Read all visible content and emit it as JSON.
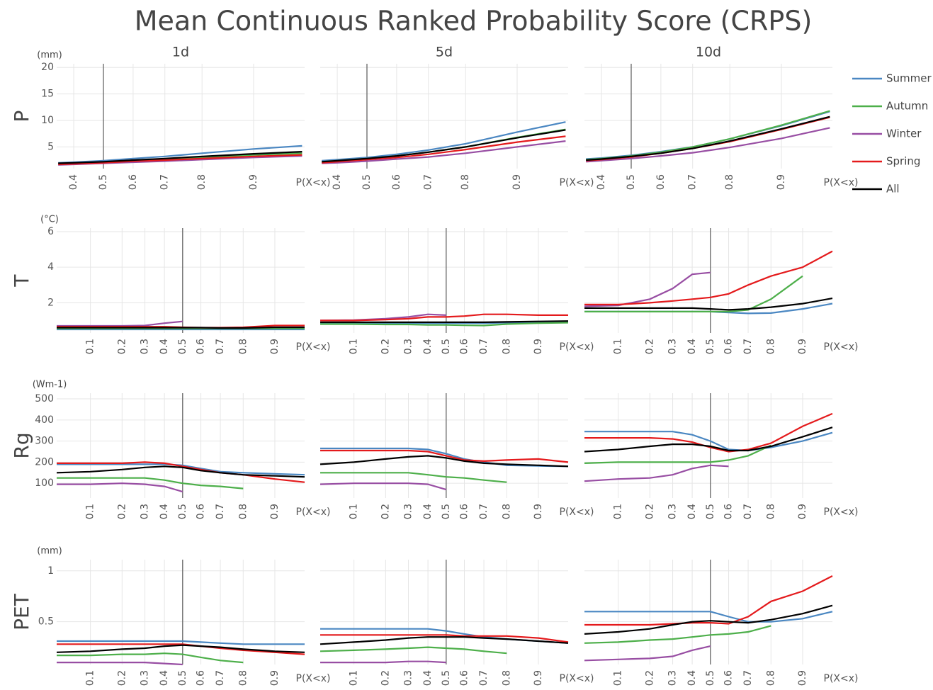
{
  "chart_data": {
    "type": "line",
    "title": "Mean Continuous Ranked Probability Score (CRPS)",
    "columns": [
      "1d",
      "5d",
      "10d"
    ],
    "x_label": "P(X<x)",
    "x_scale": "probit",
    "reference_x": 0.5,
    "grid": true,
    "legend_position": "right",
    "series": [
      {
        "name": "Summer",
        "color": "#4a87c2"
      },
      {
        "name": "Autumn",
        "color": "#4daf4a"
      },
      {
        "name": "Winter",
        "color": "#984ea3"
      },
      {
        "name": "Spring",
        "color": "#e41a1c"
      },
      {
        "name": "All",
        "color": "#000000"
      }
    ],
    "rows": [
      {
        "label": "P",
        "unit": "(mm)",
        "ylim": [
          0.9,
          20.7
        ],
        "yticks": [
          5,
          10,
          15,
          20
        ],
        "xlim": [
          0.345,
          0.957
        ],
        "xticks": [
          0.4,
          0.5,
          0.6,
          0.7,
          0.8,
          0.9
        ],
        "x": [
          0.35,
          0.4,
          0.5,
          0.6,
          0.7,
          0.8,
          0.9,
          0.955
        ],
        "panels": [
          {
            "values": [
              [
                2.0,
                2.1,
                2.4,
                2.8,
                3.2,
                3.8,
                4.6,
                5.2
              ],
              [
                1.8,
                1.9,
                2.1,
                2.4,
                2.7,
                3.0,
                3.5,
                3.8
              ],
              [
                1.6,
                1.7,
                1.9,
                2.1,
                2.3,
                2.6,
                3.0,
                3.3
              ],
              [
                1.7,
                1.8,
                2.0,
                2.3,
                2.5,
                2.8,
                3.2,
                3.5
              ],
              [
                1.9,
                2.0,
                2.2,
                2.5,
                2.8,
                3.2,
                3.7,
                4.1
              ]
            ]
          },
          {
            "values": [
              [
                2.4,
                2.6,
                3.0,
                3.6,
                4.4,
                5.6,
                7.8,
                9.7
              ],
              [
                2.2,
                2.4,
                2.8,
                3.3,
                4.0,
                5.0,
                6.8,
                8.3
              ],
              [
                1.9,
                2.0,
                2.3,
                2.7,
                3.1,
                3.8,
                5.0,
                6.1
              ],
              [
                2.0,
                2.2,
                2.6,
                3.0,
                3.6,
                4.5,
                5.9,
                7.0
              ],
              [
                2.2,
                2.4,
                2.8,
                3.3,
                4.0,
                5.0,
                6.7,
                8.2
              ]
            ]
          },
          {
            "values": [
              [
                2.7,
                2.9,
                3.4,
                4.1,
                5.0,
                6.5,
                9.0,
                11.7
              ],
              [
                2.6,
                2.8,
                3.3,
                4.0,
                5.0,
                6.5,
                9.1,
                11.8
              ],
              [
                2.2,
                2.4,
                2.8,
                3.3,
                3.9,
                4.9,
                6.6,
                8.6
              ],
              [
                2.4,
                2.6,
                3.1,
                3.8,
                4.7,
                6.0,
                8.3,
                10.6
              ],
              [
                2.5,
                2.7,
                3.2,
                3.8,
                4.7,
                6.1,
                8.4,
                10.7
              ]
            ]
          }
        ]
      },
      {
        "label": "T",
        "unit": "(°C)",
        "ylim": [
          0.3,
          6.2
        ],
        "yticks": [
          2,
          4,
          6
        ],
        "xlim": [
          0.04,
          0.955
        ],
        "xticks": [
          0.1,
          0.2,
          0.3,
          0.4,
          0.5,
          0.6,
          0.7,
          0.8,
          0.9
        ],
        "x": [
          0.04,
          0.1,
          0.2,
          0.3,
          0.4,
          0.5,
          0.6,
          0.7,
          0.8,
          0.9,
          0.955
        ],
        "panels": [
          {
            "values": [
              [
                0.5,
                0.5,
                0.5,
                0.5,
                0.5,
                0.5,
                0.5,
                0.5,
                0.5,
                0.5,
                0.5
              ],
              [
                0.55,
                0.55,
                0.55,
                0.55,
                0.55,
                0.55,
                0.55,
                0.55,
                0.55,
                0.55,
                0.55
              ],
              [
                0.7,
                0.7,
                0.7,
                0.72,
                0.85,
                0.95,
                null,
                null,
                null,
                null,
                null
              ],
              [
                0.65,
                0.65,
                0.65,
                0.65,
                0.65,
                0.62,
                0.6,
                0.6,
                0.62,
                0.72,
                0.72
              ],
              [
                0.6,
                0.6,
                0.6,
                0.6,
                0.6,
                0.6,
                0.6,
                0.58,
                0.58,
                0.62,
                0.62
              ]
            ]
          },
          {
            "values": [
              [
                0.85,
                0.85,
                0.85,
                0.85,
                0.85,
                0.85,
                0.85,
                0.85,
                0.88,
                0.9,
                0.92
              ],
              [
                0.8,
                0.8,
                0.78,
                0.78,
                0.75,
                0.75,
                0.73,
                0.72,
                0.8,
                0.85,
                0.88
              ],
              [
                1.0,
                1.02,
                1.1,
                1.2,
                1.35,
                1.3,
                null,
                null,
                null,
                null,
                null
              ],
              [
                1.0,
                1.0,
                1.05,
                1.1,
                1.2,
                1.2,
                1.25,
                1.35,
                1.35,
                1.3,
                1.3
              ],
              [
                0.9,
                0.9,
                0.9,
                0.9,
                0.9,
                0.9,
                0.9,
                0.9,
                0.92,
                0.95,
                0.97
              ]
            ]
          },
          {
            "values": [
              [
                1.5,
                1.5,
                1.5,
                1.5,
                1.5,
                1.5,
                1.45,
                1.4,
                1.42,
                1.65,
                1.95
              ],
              [
                1.5,
                1.5,
                1.5,
                1.5,
                1.5,
                1.5,
                1.5,
                1.6,
                2.2,
                3.5,
                null
              ],
              [
                1.8,
                1.85,
                2.2,
                2.8,
                3.6,
                3.7,
                null,
                null,
                null,
                null,
                null
              ],
              [
                1.9,
                1.9,
                2.0,
                2.1,
                2.2,
                2.3,
                2.5,
                3.0,
                3.5,
                4.0,
                4.9
              ],
              [
                1.7,
                1.7,
                1.7,
                1.7,
                1.7,
                1.65,
                1.6,
                1.65,
                1.75,
                1.95,
                2.25
              ]
            ]
          }
        ]
      },
      {
        "label": "Rg",
        "unit": "(Wm-1)",
        "ylim": [
          30,
          527
        ],
        "yticks": [
          100,
          200,
          300,
          400,
          500
        ],
        "xlim": [
          0.04,
          0.955
        ],
        "xticks": [
          0.1,
          0.2,
          0.3,
          0.4,
          0.5,
          0.6,
          0.7,
          0.8,
          0.9
        ],
        "x": [
          0.04,
          0.1,
          0.2,
          0.3,
          0.4,
          0.5,
          0.6,
          0.7,
          0.8,
          0.9,
          0.955
        ],
        "panels": [
          {
            "values": [
              [
                190,
                190,
                190,
                190,
                190,
                185,
                170,
                155,
                150,
                145,
                140
              ],
              [
                125,
                125,
                125,
                125,
                115,
                100,
                90,
                85,
                75,
                null,
                null
              ],
              [
                95,
                95,
                100,
                95,
                85,
                60,
                null,
                null,
                null,
                null,
                null
              ],
              [
                195,
                195,
                195,
                200,
                195,
                180,
                165,
                150,
                140,
                120,
                105
              ],
              [
                150,
                155,
                165,
                175,
                180,
                175,
                160,
                150,
                140,
                135,
                130
              ]
            ]
          },
          {
            "values": [
              [
                265,
                265,
                265,
                265,
                260,
                240,
                215,
                200,
                185,
                182,
                180
              ],
              [
                150,
                150,
                150,
                150,
                140,
                130,
                125,
                115,
                105,
                null,
                null
              ],
              [
                95,
                100,
                100,
                100,
                95,
                70,
                null,
                null,
                null,
                null,
                null
              ],
              [
                255,
                255,
                255,
                255,
                250,
                230,
                210,
                205,
                210,
                215,
                200
              ],
              [
                190,
                200,
                215,
                225,
                230,
                220,
                205,
                195,
                190,
                185,
                180
              ]
            ]
          },
          {
            "values": [
              [
                345,
                345,
                345,
                345,
                330,
                300,
                260,
                255,
                270,
                300,
                340
              ],
              [
                195,
                200,
                200,
                200,
                200,
                200,
                210,
                230,
                280,
                null,
                null
              ],
              [
                110,
                120,
                125,
                140,
                170,
                185,
                180,
                null,
                null,
                null,
                null
              ],
              [
                315,
                315,
                315,
                310,
                295,
                270,
                250,
                260,
                290,
                370,
                430
              ],
              [
                250,
                260,
                275,
                285,
                285,
                275,
                255,
                255,
                275,
                320,
                365
              ]
            ]
          }
        ]
      },
      {
        "label": "PET",
        "unit": "(mm)",
        "ylim": [
          0.08,
          1.11
        ],
        "yticks": [
          0.5,
          1
        ],
        "xlim": [
          0.04,
          0.955
        ],
        "xticks": [
          0.1,
          0.2,
          0.3,
          0.4,
          0.5,
          0.6,
          0.7,
          0.8,
          0.9
        ],
        "x": [
          0.04,
          0.1,
          0.2,
          0.3,
          0.4,
          0.5,
          0.6,
          0.7,
          0.8,
          0.9,
          0.955
        ],
        "panels": [
          {
            "values": [
              [
                0.31,
                0.31,
                0.31,
                0.31,
                0.31,
                0.31,
                0.3,
                0.29,
                0.28,
                0.28,
                0.28
              ],
              [
                0.17,
                0.17,
                0.18,
                0.18,
                0.19,
                0.18,
                0.15,
                0.12,
                0.1,
                null,
                null
              ],
              [
                0.1,
                0.1,
                0.1,
                0.1,
                0.09,
                0.08,
                null,
                null,
                null,
                null,
                null
              ],
              [
                0.28,
                0.28,
                0.28,
                0.28,
                0.28,
                0.28,
                0.26,
                0.24,
                0.22,
                0.2,
                0.18
              ],
              [
                0.2,
                0.21,
                0.23,
                0.24,
                0.26,
                0.27,
                0.26,
                0.25,
                0.23,
                0.21,
                0.2
              ]
            ]
          },
          {
            "values": [
              [
                0.43,
                0.43,
                0.43,
                0.43,
                0.43,
                0.41,
                0.38,
                0.35,
                0.33,
                0.31,
                0.29
              ],
              [
                0.21,
                0.22,
                0.23,
                0.24,
                0.25,
                0.24,
                0.23,
                0.21,
                0.19,
                null,
                null
              ],
              [
                0.1,
                0.1,
                0.1,
                0.11,
                0.11,
                0.1,
                null,
                null,
                null,
                null,
                null
              ],
              [
                0.37,
                0.37,
                0.37,
                0.37,
                0.37,
                0.37,
                0.36,
                0.36,
                0.36,
                0.34,
                0.3
              ],
              [
                0.28,
                0.3,
                0.32,
                0.34,
                0.35,
                0.35,
                0.35,
                0.34,
                0.33,
                0.31,
                0.29
              ]
            ]
          },
          {
            "values": [
              [
                0.6,
                0.6,
                0.6,
                0.6,
                0.6,
                0.6,
                0.55,
                0.5,
                0.5,
                0.53,
                0.6
              ],
              [
                0.29,
                0.3,
                0.32,
                0.33,
                0.35,
                0.37,
                0.38,
                0.4,
                0.46,
                null,
                null
              ],
              [
                0.12,
                0.13,
                0.14,
                0.16,
                0.22,
                0.26,
                null,
                null,
                null,
                null,
                null
              ],
              [
                0.47,
                0.47,
                0.47,
                0.48,
                0.49,
                0.49,
                0.48,
                0.55,
                0.7,
                0.8,
                0.95
              ],
              [
                0.38,
                0.4,
                0.43,
                0.47,
                0.5,
                0.51,
                0.5,
                0.49,
                0.52,
                0.58,
                0.66
              ]
            ]
          }
        ]
      }
    ]
  }
}
